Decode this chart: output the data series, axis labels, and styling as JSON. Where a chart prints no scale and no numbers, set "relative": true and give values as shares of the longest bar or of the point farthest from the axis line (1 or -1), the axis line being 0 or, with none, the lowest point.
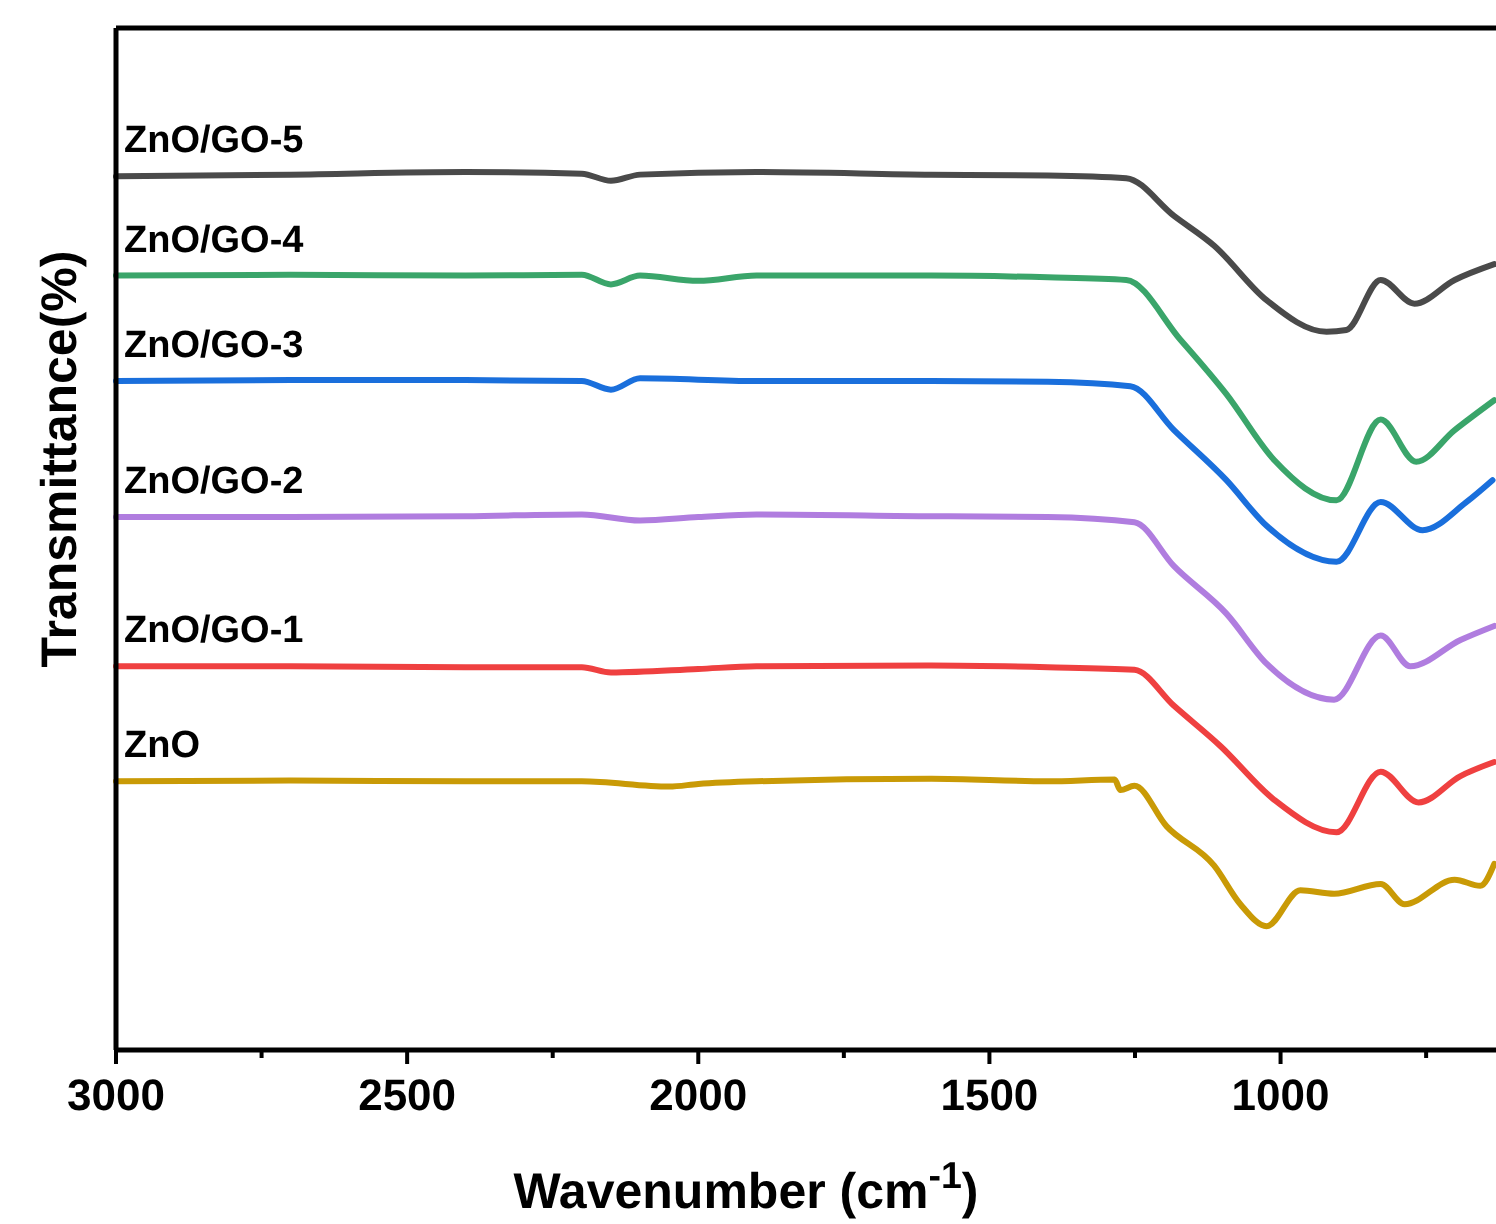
{
  "chart_data": {
    "type": "line",
    "relative": true,
    "xlabel": "Wavenumber (cm$^{-1}$)",
    "ylabel": "Transmittance(%)",
    "xlim": [
      3000,
      630
    ],
    "xticks": [
      3000,
      {
        "value": 2750,
        "label": null
      },
      2500,
      {
        "value": 2250,
        "label": null
      },
      2000,
      {
        "value": 1750,
        "label": null
      },
      1500,
      {
        "value": 1250,
        "label": null
      },
      1000,
      {
        "value": 750,
        "label": null
      }
    ],
    "grid": false,
    "marker": "none",
    "line_style": "solid",
    "series": [
      {
        "name": "ZnO/GO-5",
        "color": "#4a4a4a",
        "x": [
          3000,
          2700,
          2400,
          2200,
          2150,
          2100,
          1900,
          1600,
          1400,
          1265,
          1183,
          1114,
          1024,
          921,
          887,
          828,
          770,
          701,
          633
        ],
        "values": [
          0.995,
          0.997,
          1.0,
          0.998,
          0.99,
          0.997,
          1.0,
          0.997,
          0.996,
          0.993,
          0.95,
          0.916,
          0.854,
          0.818,
          0.82,
          0.877,
          0.85,
          0.877,
          0.895
        ]
      },
      {
        "name": "ZnO/GO-4",
        "color": "#3aa56a",
        "x": [
          3000,
          2700,
          2400,
          2200,
          2150,
          2100,
          2000,
          1900,
          1600,
          1400,
          1265,
          1172,
          1093,
          1011,
          904,
          828,
          767,
          701,
          633
        ],
        "values": [
          0.882,
          0.883,
          0.882,
          0.883,
          0.872,
          0.882,
          0.876,
          0.882,
          0.882,
          0.88,
          0.877,
          0.809,
          0.747,
          0.672,
          0.626,
          0.718,
          0.67,
          0.706,
          0.74
        ]
      },
      {
        "name": "ZnO/GO-3",
        "color": "#1a6fdc",
        "x": [
          3000,
          2700,
          2400,
          2200,
          2150,
          2100,
          1900,
          1600,
          1400,
          1258,
          1183,
          1093,
          1024,
          904,
          828,
          756,
          681,
          636
        ],
        "values": [
          0.762,
          0.763,
          0.763,
          0.762,
          0.752,
          0.765,
          0.762,
          0.762,
          0.761,
          0.756,
          0.706,
          0.649,
          0.597,
          0.556,
          0.624,
          0.592,
          0.624,
          0.649
        ]
      },
      {
        "name": "ZnO/GO-2",
        "color": "#b07ddf",
        "x": [
          3000,
          2700,
          2400,
          2200,
          2100,
          2000,
          1900,
          1600,
          1400,
          1251,
          1183,
          1093,
          1024,
          908,
          828,
          777,
          691,
          633
        ],
        "values": [
          0.607,
          0.607,
          0.608,
          0.61,
          0.603,
          0.607,
          0.61,
          0.608,
          0.607,
          0.601,
          0.551,
          0.497,
          0.44,
          0.399,
          0.472,
          0.437,
          0.467,
          0.483
        ]
      },
      {
        "name": "ZnO/GO-1",
        "color": "#ef4040",
        "x": [
          3000,
          2700,
          2400,
          2200,
          2150,
          2000,
          1900,
          1600,
          1400,
          1251,
          1183,
          1103,
          1011,
          904,
          828,
          763,
          691,
          633
        ],
        "values": [
          0.437,
          0.437,
          0.436,
          0.436,
          0.43,
          0.434,
          0.437,
          0.438,
          0.436,
          0.433,
          0.392,
          0.346,
          0.285,
          0.248,
          0.317,
          0.282,
          0.312,
          0.328
        ]
      },
      {
        "name": "ZnO",
        "color": "#c99a06",
        "x": [
          3000,
          2700,
          2400,
          2200,
          2050,
          2000,
          1900,
          1600,
          1400,
          1285,
          1275,
          1251,
          1196,
          1114,
          1069,
          1024,
          966,
          908,
          828,
          787,
          701,
          657,
          633
        ],
        "values": [
          0.306,
          0.307,
          0.306,
          0.306,
          0.3,
          0.303,
          0.306,
          0.309,
          0.306,
          0.308,
          0.296,
          0.301,
          0.255,
          0.21,
          0.166,
          0.141,
          0.182,
          0.178,
          0.189,
          0.166,
          0.194,
          0.187,
          0.212
        ]
      }
    ]
  }
}
